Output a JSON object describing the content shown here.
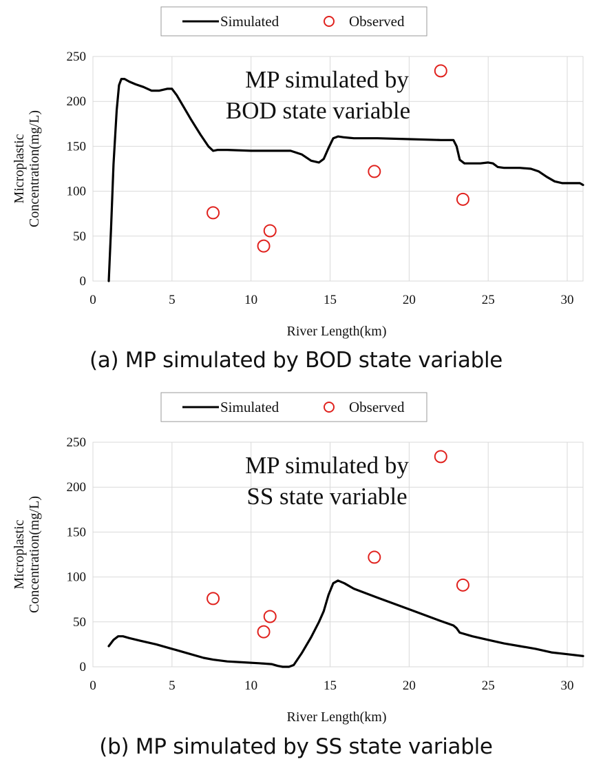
{
  "chart_data": [
    {
      "type": "line",
      "panel": "a",
      "caption": "(a) MP simulated by BOD state variable",
      "annotation_line1": "MP simulated by",
      "annotation_line2": "BOD state variable",
      "xlabel": "River Length(km)",
      "ylabel_line1": "Microplastic",
      "ylabel_line2": "Concentration(mg/L)",
      "xlim": [
        0,
        31
      ],
      "ylim": [
        0,
        250
      ],
      "xticks": [
        0,
        5,
        10,
        15,
        20,
        25,
        30
      ],
      "yticks": [
        0,
        50,
        100,
        150,
        200,
        250
      ],
      "grid": true,
      "legend_position": "top-center",
      "series": [
        {
          "name": "Simulated",
          "style": "line",
          "color": "#000000",
          "x": [
            1.0,
            1.15,
            1.3,
            1.5,
            1.65,
            1.8,
            2.0,
            2.3,
            2.7,
            3.2,
            3.7,
            4.2,
            4.7,
            5.0,
            5.3,
            5.7,
            6.2,
            6.8,
            7.3,
            7.6,
            7.9,
            8.5,
            10.0,
            11.5,
            12.5,
            13.2,
            13.8,
            14.3,
            14.6,
            14.9,
            15.2,
            15.5,
            15.9,
            16.5,
            18.0,
            20.0,
            22.0,
            22.8,
            23.0,
            23.2,
            23.5,
            24.0,
            24.5,
            25.0,
            25.3,
            25.6,
            26.0,
            27.0,
            27.7,
            28.2,
            28.7,
            29.2,
            29.7,
            30.3,
            30.8,
            31.0
          ],
          "y": [
            0,
            60,
            130,
            190,
            218,
            225,
            225,
            222,
            219,
            216,
            212,
            212,
            214,
            214,
            207,
            195,
            180,
            163,
            150,
            145,
            146,
            146,
            145,
            145,
            145,
            141,
            134,
            132,
            136,
            148,
            159,
            161,
            160,
            159,
            159,
            158,
            157,
            157,
            150,
            135,
            131,
            131,
            131,
            132,
            131,
            127,
            126,
            126,
            125,
            122,
            116,
            111,
            109,
            109,
            109,
            107
          ]
        },
        {
          "name": "Observed",
          "style": "scatter",
          "marker": "open-circle",
          "color": "#e0211d",
          "x": [
            7.6,
            10.8,
            11.2,
            17.8,
            22.0,
            23.4
          ],
          "y": [
            76,
            39,
            56,
            122,
            234,
            91
          ]
        }
      ]
    },
    {
      "type": "line",
      "panel": "b",
      "caption": "(b) MP simulated by SS state variable",
      "annotation_line1": "MP simulated by",
      "annotation_line2": "SS state variable",
      "xlabel": "River Length(km)",
      "ylabel_line1": "Microplastic",
      "ylabel_line2": "Concentration(mg/L)",
      "xlim": [
        0,
        31
      ],
      "ylim": [
        0,
        250
      ],
      "xticks": [
        0,
        5,
        10,
        15,
        20,
        25,
        30
      ],
      "yticks": [
        0,
        50,
        100,
        150,
        200,
        250
      ],
      "grid": true,
      "legend_position": "top-center",
      "series": [
        {
          "name": "Simulated",
          "style": "line",
          "color": "#000000",
          "x": [
            1.0,
            1.3,
            1.6,
            1.9,
            2.3,
            3.0,
            4.0,
            5.0,
            6.0,
            7.0,
            7.6,
            8.5,
            9.5,
            10.5,
            11.3,
            11.7,
            12.0,
            12.4,
            12.7,
            13.2,
            13.8,
            14.3,
            14.6,
            14.9,
            15.2,
            15.5,
            15.9,
            16.5,
            18.0,
            20.0,
            22.0,
            22.8,
            23.0,
            23.2,
            24.0,
            25.0,
            26.0,
            27.0,
            28.0,
            29.0,
            30.0,
            31.0
          ],
          "y": [
            23,
            30,
            34,
            34,
            32,
            29,
            25,
            20,
            15,
            10,
            8,
            6,
            5,
            4,
            3,
            1,
            0,
            0,
            2,
            15,
            33,
            50,
            62,
            80,
            93,
            96,
            93,
            87,
            77,
            64,
            51,
            46,
            43,
            38,
            34,
            30,
            26,
            23,
            20,
            16,
            14,
            12
          ]
        },
        {
          "name": "Observed",
          "style": "scatter",
          "marker": "open-circle",
          "color": "#e0211d",
          "x": [
            7.6,
            10.8,
            11.2,
            17.8,
            22.0,
            23.4
          ],
          "y": [
            76,
            39,
            56,
            122,
            234,
            91
          ]
        }
      ]
    }
  ]
}
